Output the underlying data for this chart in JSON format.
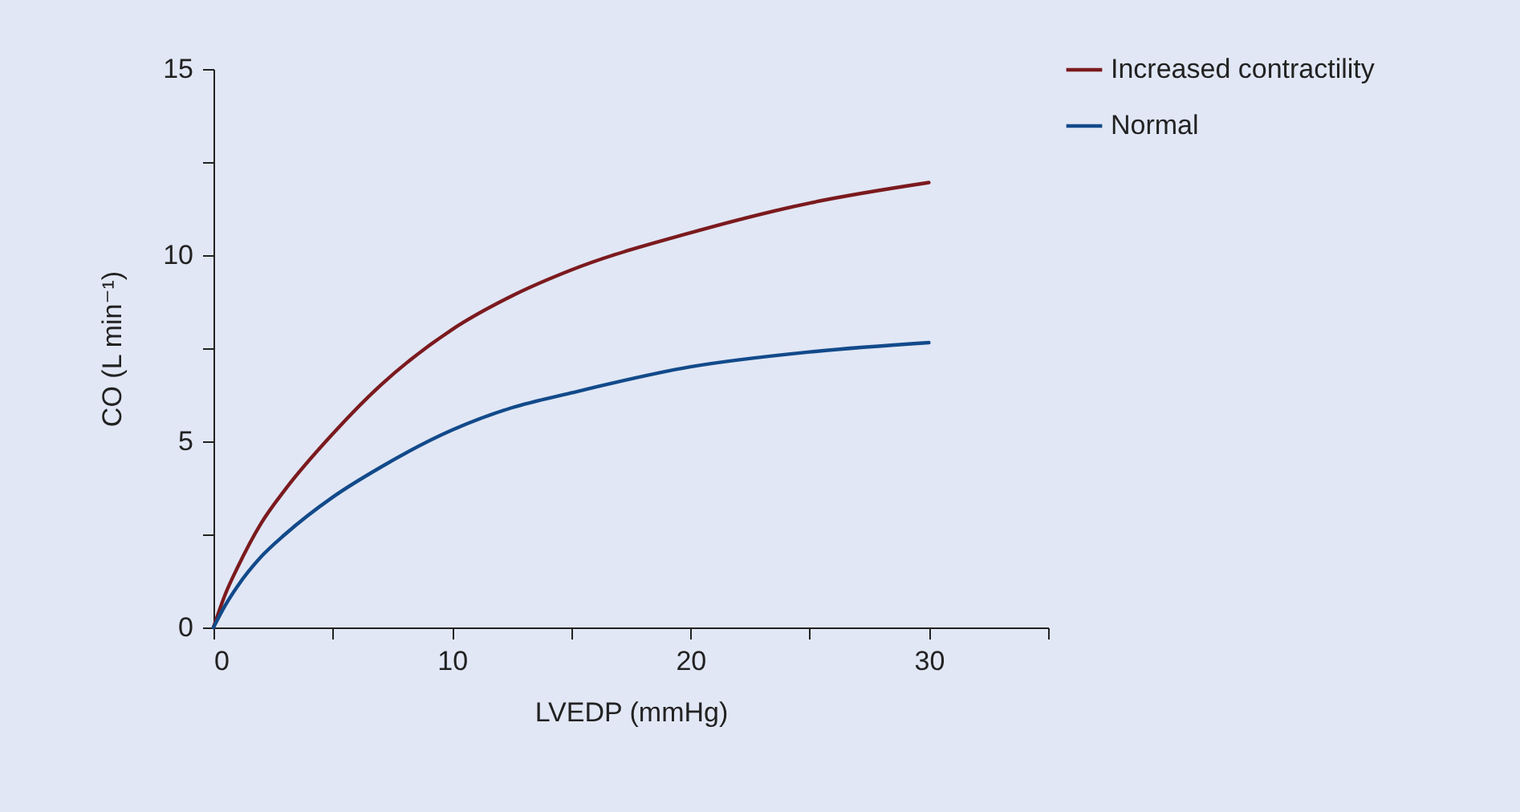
{
  "chart_data": {
    "type": "line",
    "xlabel": "LVEDP (mmHg)",
    "ylabel": "CO (L min⁻¹)",
    "xlim": [
      0,
      35
    ],
    "ylim": [
      0,
      15
    ],
    "xticks": [
      0,
      {
        "value": 5,
        "label": null
      },
      10,
      {
        "value": 15,
        "label": null
      },
      20,
      {
        "value": 25,
        "label": null
      },
      30,
      {
        "value": 35,
        "label": null
      }
    ],
    "yticks": [
      0,
      {
        "value": 2.5,
        "label": null
      },
      5,
      {
        "value": 7.5,
        "label": null
      },
      10,
      {
        "value": 12.5,
        "label": null
      },
      15
    ],
    "x": [
      0,
      0.5,
      1,
      2,
      3,
      5,
      7,
      10,
      12.5,
      15,
      20,
      25,
      30
    ],
    "series": [
      {
        "name": "Increased contractility",
        "color": "#7b1a1e",
        "values": [
          0,
          0.9,
          1.6,
          2.8,
          3.7,
          5.2,
          6.5,
          8.0,
          8.9,
          9.6,
          10.6,
          11.4,
          11.95
        ]
      },
      {
        "name": "Normal",
        "color": "#124a8a",
        "values": [
          0,
          0.6,
          1.1,
          1.9,
          2.5,
          3.5,
          4.3,
          5.3,
          5.9,
          6.3,
          7.0,
          7.4,
          7.65
        ]
      }
    ],
    "legend": "top right",
    "grid": false,
    "marker": "none",
    "line_style": "solid"
  }
}
